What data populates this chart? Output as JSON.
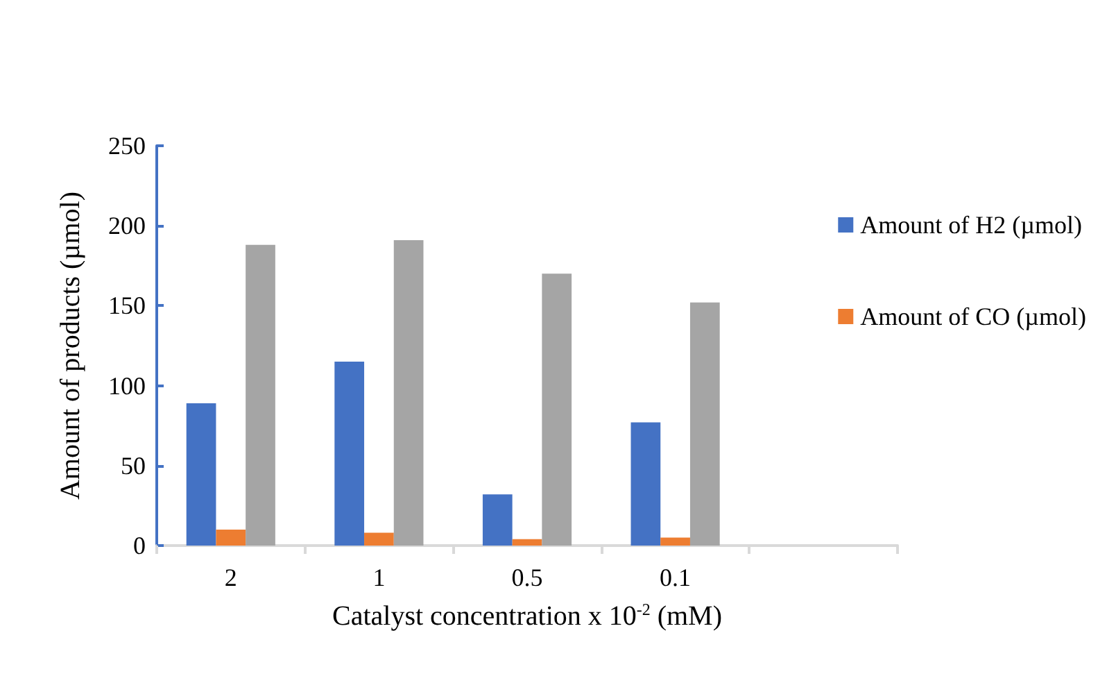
{
  "chart_data": {
    "type": "bar",
    "xlabel": "Catalyst concentration x 10$^{-2}$ (mM)",
    "ylabel": "Amount of products (µmol)",
    "categories": [
      "2",
      "1",
      "0.5",
      "0.1",
      null
    ],
    "series": [
      {
        "name": "Amount of H2 (µmol)",
        "color": "#4472c4",
        "values": [
          89,
          115,
          32,
          77,
          null
        ]
      },
      {
        "name": "Amount of CO (µmol)",
        "color": "#ed7d31",
        "values": [
          10,
          8,
          4,
          5,
          null
        ]
      },
      {
        "color": "#a5a5a5",
        "values": [
          188,
          191,
          170,
          152,
          null
        ]
      }
    ],
    "ylim": [
      0,
      250
    ],
    "yticks": [
      0,
      50,
      100,
      150,
      200,
      250
    ],
    "grid": false,
    "legend": "right"
  }
}
